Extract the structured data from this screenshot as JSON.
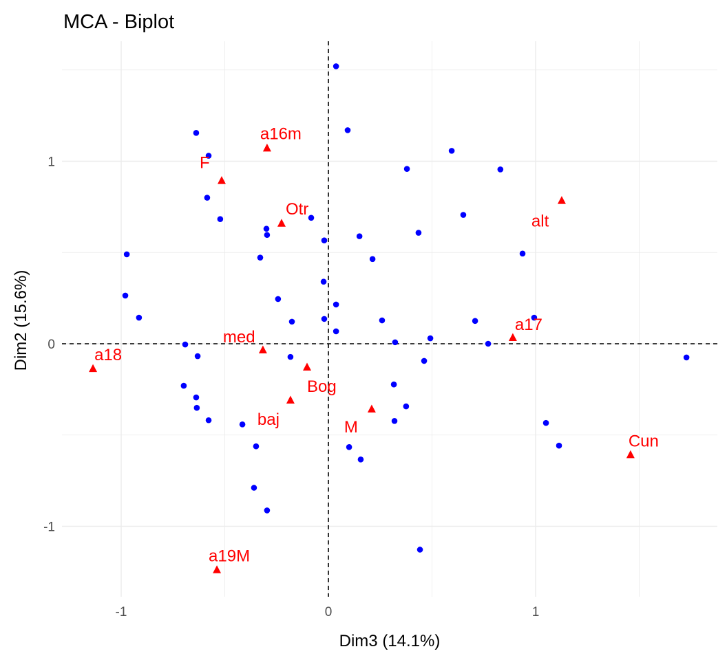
{
  "chart_data": {
    "type": "scatter",
    "title": "MCA - Biplot",
    "xlabel": "Dim3 (14.1%)",
    "ylabel": "Dim2 (15.6%)",
    "xlim": [
      -1.28,
      1.88
    ],
    "ylim": [
      -1.39,
      1.65
    ],
    "xticks": [
      -1,
      0,
      1
    ],
    "yticks": [
      -1,
      0,
      1
    ],
    "grid": true,
    "series": [
      {
        "name": "individuals",
        "color": "#0000ff",
        "marker": "circle",
        "points": [
          [
            0.037,
            1.52
          ],
          [
            0.093,
            1.17
          ],
          [
            -0.638,
            1.155
          ],
          [
            -0.578,
            1.03
          ],
          [
            0.595,
            1.057
          ],
          [
            0.379,
            0.958
          ],
          [
            0.83,
            0.955
          ],
          [
            -0.585,
            0.8
          ],
          [
            -0.522,
            0.683
          ],
          [
            0.651,
            0.706
          ],
          [
            -0.083,
            0.69
          ],
          [
            -0.299,
            0.63
          ],
          [
            -0.296,
            0.596
          ],
          [
            0.435,
            0.608
          ],
          [
            0.15,
            0.589
          ],
          [
            -0.02,
            0.566
          ],
          [
            -0.973,
            0.49
          ],
          [
            -0.329,
            0.472
          ],
          [
            0.213,
            0.464
          ],
          [
            0.937,
            0.494
          ],
          [
            -0.023,
            0.34
          ],
          [
            -0.98,
            0.264
          ],
          [
            -0.243,
            0.245
          ],
          [
            0.037,
            0.215
          ],
          [
            -0.914,
            0.143
          ],
          [
            -0.176,
            0.121
          ],
          [
            -0.02,
            0.136
          ],
          [
            0.259,
            0.128
          ],
          [
            0.708,
            0.125
          ],
          [
            0.993,
            0.143
          ],
          [
            0.037,
            0.068
          ],
          [
            0.322,
            0.008
          ],
          [
            0.492,
            0.03
          ],
          [
            0.771,
            0.0
          ],
          [
            -0.691,
            -0.004
          ],
          [
            -0.631,
            -0.068
          ],
          [
            -0.183,
            -0.072
          ],
          [
            0.462,
            -0.094
          ],
          [
            1.728,
            -0.075
          ],
          [
            -0.698,
            -0.23
          ],
          [
            0.316,
            -0.223
          ],
          [
            -0.638,
            -0.294
          ],
          [
            -0.635,
            -0.351
          ],
          [
            0.375,
            -0.343
          ],
          [
            -0.578,
            -0.419
          ],
          [
            0.319,
            -0.423
          ],
          [
            -0.415,
            -0.442
          ],
          [
            1.05,
            -0.434
          ],
          [
            -0.349,
            -0.562
          ],
          [
            0.1,
            -0.566
          ],
          [
            1.113,
            -0.558
          ],
          [
            0.156,
            -0.634
          ],
          [
            -0.359,
            -0.789
          ],
          [
            -0.296,
            -0.913
          ],
          [
            0.442,
            -1.128
          ]
        ]
      },
      {
        "name": "variable categories",
        "color": "#ff0000",
        "marker": "triangle",
        "points": [
          {
            "label": "a16m",
            "x": -0.296,
            "y": 1.072
          },
          {
            "label": "F",
            "x": -0.515,
            "y": 0.894
          },
          {
            "label": "Otr",
            "x": -0.226,
            "y": 0.66
          },
          {
            "label": "alt",
            "x": 1.126,
            "y": 0.785
          },
          {
            "label": "a17",
            "x": 0.89,
            "y": 0.034
          },
          {
            "label": "med",
            "x": -0.316,
            "y": -0.034
          },
          {
            "label": "a18",
            "x": -1.136,
            "y": -0.136
          },
          {
            "label": "Bog",
            "x": -0.103,
            "y": -0.128
          },
          {
            "label": "baj",
            "x": -0.183,
            "y": -0.309
          },
          {
            "label": "M",
            "x": 0.209,
            "y": -0.358
          },
          {
            "label": "Cun",
            "x": 1.458,
            "y": -0.608
          },
          {
            "label": "a19M",
            "x": -0.538,
            "y": -1.238
          }
        ]
      }
    ]
  }
}
